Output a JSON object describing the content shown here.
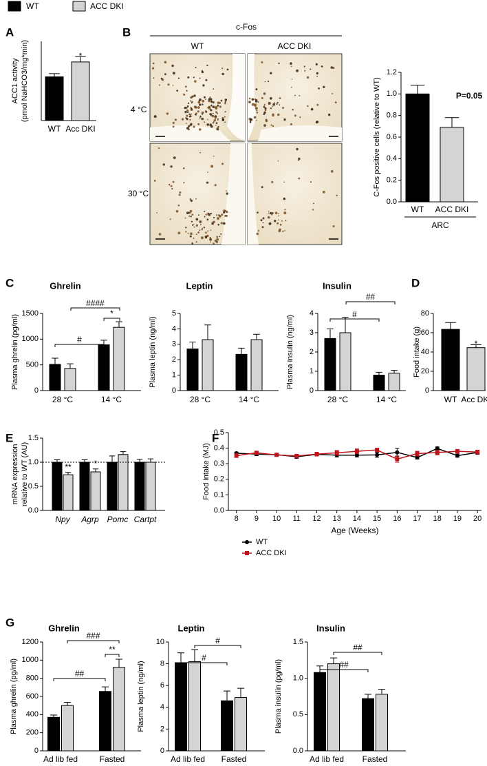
{
  "panel_labels": [
    "A",
    "B",
    "C",
    "D",
    "E",
    "F",
    "G"
  ],
  "image_panel": {
    "title": "c-Fos",
    "columns": [
      "WT",
      "ACC DKI"
    ],
    "rows": [
      "4 °C",
      "30 °C"
    ]
  },
  "chart_data": [
    {
      "type": "bar",
      "ylabel": [
        "ACC1 activity",
        "(pmol NaHCO3/mg*min)"
      ],
      "categories": [
        "WT",
        "Acc DKI"
      ],
      "values": [
        13.8,
        18.5
      ],
      "errors": [
        1.0,
        1.7
      ],
      "colors": [
        "#000000",
        "#d4d4d4"
      ],
      "ylim": [
        0,
        25
      ],
      "annotations": [
        "*"
      ]
    },
    {
      "type": "bar",
      "ylabel": "C-Fos positive cells (relative to WT)",
      "categories": [
        "WT",
        "ACC DKI"
      ],
      "group_label": "ARC",
      "values": [
        1.0,
        0.69
      ],
      "errors": [
        0.08,
        0.09
      ],
      "colors": [
        "#000000",
        "#d4d4d4"
      ],
      "ylim": [
        0,
        1.2
      ],
      "yticks": [
        {
          "value": 0,
          "label": "0.0"
        },
        0.2,
        0.4,
        0.6,
        0.8,
        {
          "value": 1,
          "label": "1.0"
        },
        1.2
      ],
      "annotations": [
        "P=0.05"
      ]
    },
    {
      "type": "bar",
      "title": "Ghrelin",
      "ylabel": "Plasma ghrelin (pg/ml)",
      "categories": [
        "28 °C",
        "14 °C"
      ],
      "series": [
        {
          "name": "WT",
          "color": "#000000",
          "values": [
            510,
            890
          ],
          "errors": [
            120,
            90
          ]
        },
        {
          "name": "ACC DKI",
          "color": "#d4d4d4",
          "values": [
            430,
            1230
          ],
          "errors": [
            90,
            110
          ]
        }
      ],
      "ylim": [
        0,
        1500
      ],
      "yticks": [
        0,
        500,
        1000,
        1500
      ],
      "annotations": [
        "#",
        "####",
        "*"
      ]
    },
    {
      "type": "bar",
      "title": "Leptin",
      "ylabel": "Plasma leptin (ng/ml)",
      "categories": [
        "28 °C",
        "14 °C"
      ],
      "series": [
        {
          "name": "WT",
          "color": "#000000",
          "values": [
            2.7,
            2.35
          ],
          "errors": [
            0.45,
            0.4
          ]
        },
        {
          "name": "ACC DKI",
          "color": "#d4d4d4",
          "values": [
            3.3,
            3.3
          ],
          "errors": [
            0.95,
            0.35
          ]
        }
      ],
      "ylim": [
        0,
        5
      ],
      "yticks": [
        0,
        1,
        2,
        3,
        4,
        5
      ]
    },
    {
      "type": "bar",
      "title": "Insulin",
      "ylabel": "Plasma insulin (ng/ml)",
      "categories": [
        "28 °C",
        "14 °C"
      ],
      "series": [
        {
          "name": "WT",
          "color": "#000000",
          "values": [
            2.7,
            0.8
          ],
          "errors": [
            0.5,
            0.15
          ]
        },
        {
          "name": "ACC DKI",
          "color": "#d4d4d4",
          "values": [
            3.0,
            0.9
          ],
          "errors": [
            0.8,
            0.15
          ]
        }
      ],
      "ylim": [
        0,
        4
      ],
      "yticks": [
        0,
        1,
        2,
        3,
        4
      ],
      "annotations": [
        "#",
        "##"
      ]
    },
    {
      "type": "bar",
      "ylabel": "Food intake (g)",
      "categories": [
        "WT",
        "Acc DKI"
      ],
      "values": [
        63.5,
        44.5
      ],
      "errors": [
        7,
        3
      ],
      "colors": [
        "#000000",
        "#d4d4d4"
      ],
      "ylim": [
        0,
        80
      ],
      "yticks": [
        0,
        20,
        40,
        60,
        80
      ],
      "annotations": [
        "*"
      ]
    },
    {
      "type": "bar",
      "ylabel": [
        "mRNA expression",
        "relative to WT (AU)"
      ],
      "categories": [
        "Npy",
        "Agrp",
        "Pomc",
        "Cartpt"
      ],
      "category_style": "italic",
      "series": [
        {
          "name": "WT",
          "color": "#000000",
          "values": [
            1,
            1,
            1,
            1
          ],
          "errors": [
            0.05,
            0.05,
            0.13,
            0.06
          ]
        },
        {
          "name": "ACC DKI",
          "color": "#d4d4d4",
          "values": [
            0.74,
            0.8,
            1.16,
            1.0
          ],
          "errors": [
            0.05,
            0.06,
            0.06,
            0.07
          ]
        }
      ],
      "ylim": [
        0,
        1.5
      ],
      "yticks": [
        {
          "value": 0,
          "label": "0.0"
        },
        0.5,
        {
          "value": 1,
          "label": "1.0"
        },
        1.5
      ],
      "reference_line": 1,
      "annotations": [
        "**",
        "*"
      ]
    },
    {
      "type": "line",
      "ylabel": "Food intake (MJ)",
      "xlabel": "Age (Weeks)",
      "x": [
        8,
        9,
        10,
        11,
        12,
        13,
        14,
        15,
        16,
        17,
        18,
        19,
        20
      ],
      "xlim": [
        7.6,
        20.2
      ],
      "xticks": [
        8,
        9,
        10,
        11,
        12,
        13,
        14,
        15,
        16,
        17,
        18,
        19,
        20
      ],
      "ylim": [
        0,
        0.5
      ],
      "yticks": [
        {
          "value": 0,
          "label": "0.0"
        },
        0.1,
        0.2,
        0.3,
        0.4,
        0.5
      ],
      "series": [
        {
          "name": "WT",
          "color": "#000000",
          "marker": "circle",
          "values": [
            0.367,
            0.362,
            0.358,
            0.345,
            0.36,
            0.355,
            0.355,
            0.357,
            0.373,
            0.34,
            0.398,
            0.352,
            0.372
          ],
          "errors": [
            0.008,
            0.01,
            0.008,
            0.01,
            0.01,
            0.012,
            0.012,
            0.015,
            0.025,
            0.01,
            0.01,
            0.01,
            0.012
          ]
        },
        {
          "name": "ACC DKI",
          "color": "#c0141c",
          "marker": "square",
          "values": [
            0.352,
            0.37,
            0.357,
            0.35,
            0.362,
            0.37,
            0.38,
            0.388,
            0.33,
            0.365,
            0.372,
            0.38,
            0.375
          ],
          "errors": [
            0.012,
            0.01,
            0.008,
            0.01,
            0.012,
            0.015,
            0.015,
            0.012,
            0.02,
            0.015,
            0.015,
            0.012,
            0.012
          ]
        }
      ]
    },
    {
      "type": "bar",
      "title": "Ghrelin",
      "ylabel": "Plasma ghrelin (pg/ml)",
      "categories": [
        "Ad lib fed",
        "Fasted"
      ],
      "series": [
        {
          "name": "WT",
          "color": "#000000",
          "values": [
            370,
            655
          ],
          "errors": [
            25,
            50
          ]
        },
        {
          "name": "ACC DKI",
          "color": "#d4d4d4",
          "values": [
            500,
            920
          ],
          "errors": [
            35,
            90
          ]
        }
      ],
      "ylim": [
        0,
        1200
      ],
      "yticks": [
        0,
        200,
        400,
        600,
        800,
        1000,
        1200
      ],
      "annotations": [
        "##",
        "###",
        "**"
      ]
    },
    {
      "type": "bar",
      "title": "Leptin",
      "ylabel": "Plasma leptin (ng/ml)",
      "categories": [
        "Ad lib fed",
        "Fasted"
      ],
      "series": [
        {
          "name": "WT",
          "color": "#000000",
          "values": [
            8.1,
            4.6
          ],
          "errors": [
            0.9,
            0.9
          ]
        },
        {
          "name": "ACC DKI",
          "color": "#d4d4d4",
          "values": [
            8.2,
            4.9
          ],
          "errors": [
            1.1,
            0.85
          ]
        }
      ],
      "ylim": [
        0,
        10
      ],
      "yticks": [
        0,
        2,
        4,
        6,
        8,
        10
      ],
      "annotations": [
        "#",
        "#"
      ]
    },
    {
      "type": "bar",
      "title": "Insulin",
      "ylabel": "Plasma insulin (pg/ml)",
      "categories": [
        "Ad lib fed",
        "Fasted"
      ],
      "series": [
        {
          "name": "WT",
          "color": "#000000",
          "values": [
            1.08,
            0.72
          ],
          "errors": [
            0.09,
            0.06
          ]
        },
        {
          "name": "ACC DKI",
          "color": "#d4d4d4",
          "values": [
            1.2,
            0.78
          ],
          "errors": [
            0.08,
            0.07
          ]
        }
      ],
      "ylim": [
        0,
        1.5
      ],
      "yticks": [
        {
          "value": 0,
          "label": "0.0"
        },
        0.5,
        {
          "value": 1,
          "label": "1.0"
        },
        1.5
      ],
      "annotations": [
        "##",
        "##"
      ]
    }
  ]
}
